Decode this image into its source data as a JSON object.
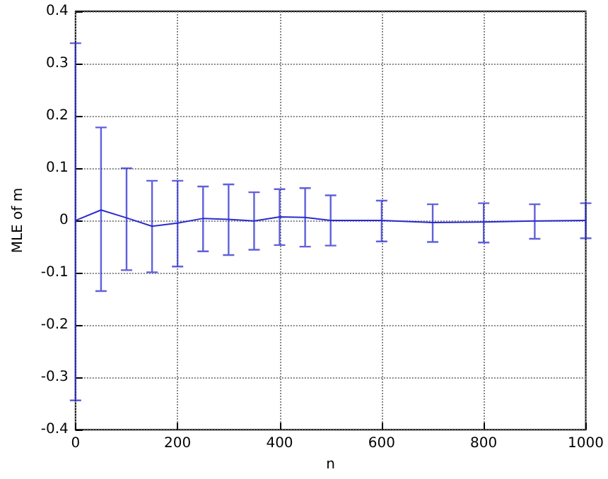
{
  "chart_data": {
    "type": "line",
    "xlabel": "n",
    "ylabel": "MLE of m",
    "x": [
      0,
      50,
      100,
      150,
      200,
      250,
      300,
      350,
      400,
      450,
      500,
      600,
      700,
      800,
      900,
      1000
    ],
    "series": [
      {
        "color": "#2b2bd0",
        "values": [
          0,
          0.02,
          0.005,
          -0.011,
          -0.005,
          0.004,
          0.002,
          -0.001,
          0.007,
          0.006,
          0,
          0,
          -0.004,
          -0.003,
          -0.001,
          0
        ],
        "errors": [
          [
            -0.344,
            0.339
          ],
          [
            -0.135,
            0.178
          ],
          [
            -0.095,
            0.1
          ],
          [
            -0.099,
            0.076
          ],
          [
            -0.088,
            0.076
          ],
          [
            -0.059,
            0.065
          ],
          [
            -0.066,
            0.069
          ],
          [
            -0.056,
            0.054
          ],
          [
            -0.047,
            0.06
          ],
          [
            -0.05,
            0.062
          ],
          [
            -0.048,
            0.048
          ],
          [
            -0.04,
            0.038
          ],
          [
            -0.041,
            0.031
          ],
          [
            -0.042,
            0.033
          ],
          [
            -0.035,
            0.031
          ],
          [
            -0.034,
            0.033
          ]
        ]
      }
    ],
    "xlim": [
      0,
      1000
    ],
    "xticks": [
      0,
      200,
      400,
      600,
      800,
      1000
    ],
    "ylim": [
      -0.4,
      0.4
    ],
    "yticks": [
      -0.4,
      -0.3,
      -0.2,
      -0.1,
      0,
      0.1,
      0.2,
      0.3,
      0.4
    ],
    "grid": true,
    "line_style": "solid",
    "marker": "none"
  }
}
